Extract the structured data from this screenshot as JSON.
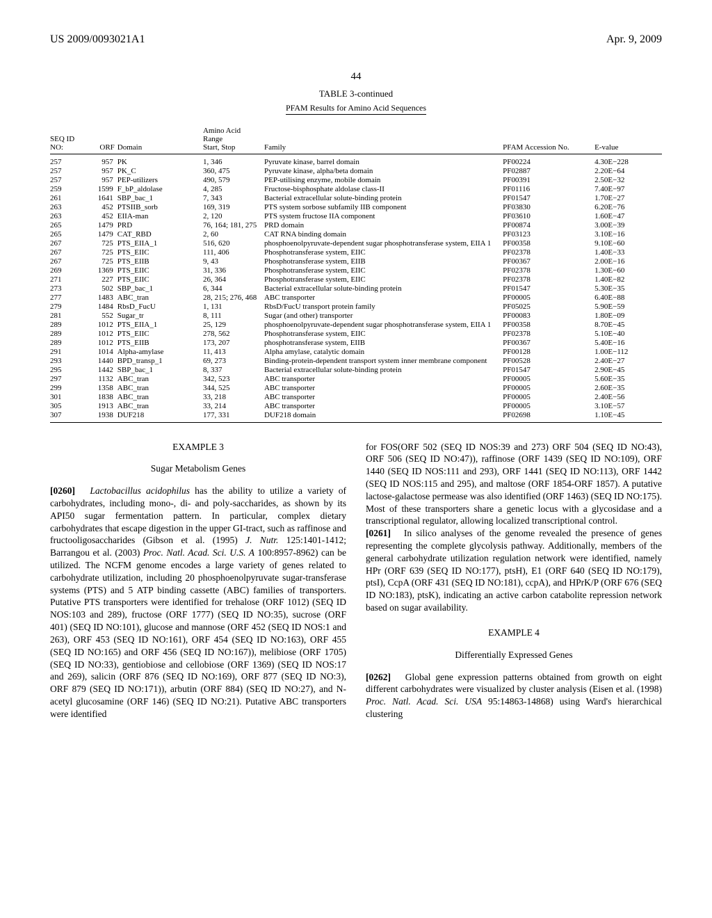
{
  "header": {
    "left": "US 2009/0093021A1",
    "right": "Apr. 9, 2009",
    "page": "44"
  },
  "table": {
    "type": "table",
    "title": "TABLE 3-continued",
    "subtitle": "PFAM Results for Amino Acid Sequences",
    "columns": [
      {
        "label_line1": "SEQ ID",
        "label_line2": "NO:"
      },
      {
        "label_line1": "",
        "label_line2": "ORF"
      },
      {
        "label_line1": "",
        "label_line2": "Domain"
      },
      {
        "label_line1": "Amino Acid",
        "label_line2a": "Range",
        "label_line2": "Start, Stop"
      },
      {
        "label_line1": "",
        "label_line2": "Family"
      },
      {
        "label_line1": "",
        "label_line2": "PFAM Accession No."
      },
      {
        "label_line1": "",
        "label_line2": "E-value"
      }
    ],
    "rows": [
      [
        "257",
        "957",
        "PK",
        "1, 346",
        "Pyruvate kinase, barrel domain",
        "PF00224",
        "4.30E−228"
      ],
      [
        "257",
        "957",
        "PK_C",
        "360, 475",
        "Pyruvate kinase, alpha/beta domain",
        "PF02887",
        "2.20E−64"
      ],
      [
        "257",
        "957",
        "PEP-utilizers",
        "490, 579",
        "PEP-utilising enzyme, mobile domain",
        "PF00391",
        "2.50E−32"
      ],
      [
        "259",
        "1599",
        "F_bP_aldolase",
        "4, 285",
        "Fructose-bisphosphate aldolase class-II",
        "PF01116",
        "7.40E−97"
      ],
      [
        "261",
        "1641",
        "SBP_bac_1",
        "7, 343",
        "Bacterial extracellular solute-binding protein",
        "PF01547",
        "1.70E−27"
      ],
      [
        "263",
        "452",
        "PTSIIB_sorb",
        "169, 319",
        "PTS system sorbose subfamily IIB component",
        "PF03830",
        "6.20E−76"
      ],
      [
        "263",
        "452",
        "EIIA-man",
        "2, 120",
        "PTS system fructose IIA component",
        "PF03610",
        "1.60E−47"
      ],
      [
        "265",
        "1479",
        "PRD",
        "76, 164; 181, 275",
        "PRD domain",
        "PF00874",
        "3.00E−39"
      ],
      [
        "265",
        "1479",
        "CAT_RBD",
        "2, 60",
        "CAT RNA binding domain",
        "PF03123",
        "3.10E−16"
      ],
      [
        "267",
        "725",
        "PTS_EIIA_1",
        "516, 620",
        "phosphoenolpyruvate-dependent sugar phosphotransferase system, EIIA 1",
        "PF00358",
        "9.10E−60"
      ],
      [
        "267",
        "725",
        "PTS_EIIC",
        "111, 406",
        "Phosphotransferase system, EIIC",
        "PF02378",
        "1.40E−33"
      ],
      [
        "267",
        "725",
        "PTS_EIIB",
        "9, 43",
        "Phosphotransferase system, EIIB",
        "PF00367",
        "2.00E−16"
      ],
      [
        "269",
        "1369",
        "PTS_EIIC",
        "31, 336",
        "Phosphotransferase system, EIIC",
        "PF02378",
        "1.30E−60"
      ],
      [
        "271",
        "227",
        "PTS_EIIC",
        "26, 364",
        "Phosphotransferase system, EIIC",
        "PF02378",
        "1.40E−82"
      ],
      [
        "273",
        "502",
        "SBP_bac_1",
        "6, 344",
        "Bacterial extracellular solute-binding protein",
        "PF01547",
        "5.30E−35"
      ],
      [
        "277",
        "1483",
        "ABC_tran",
        "28, 215; 276, 468",
        "ABC transporter",
        "PF00005",
        "6.40E−88"
      ],
      [
        "279",
        "1484",
        "RbsD_FucU",
        "1, 131",
        "RbsD/FucU transport protein family",
        "PF05025",
        "5.90E−59"
      ],
      [
        "281",
        "552",
        "Sugar_tr",
        "8, 111",
        "Sugar (and other) transporter",
        "PF00083",
        "1.80E−09"
      ],
      [
        "289",
        "1012",
        "PTS_EIIA_1",
        "25, 129",
        "phosphoenolpyruvate-dependent sugar phosphotransferase system, EIIA 1",
        "PF00358",
        "8.70E−45"
      ],
      [
        "289",
        "1012",
        "PTS_EIIC",
        "278, 562",
        "Phosphotransferase system, EIIC",
        "PF02378",
        "5.10E−40"
      ],
      [
        "289",
        "1012",
        "PTS_EIIB",
        "173, 207",
        "phosphotransferase system, EIIB",
        "PF00367",
        "5.40E−16"
      ],
      [
        "291",
        "1014",
        "Alpha-amylase",
        "11, 413",
        "Alpha amylase, catalytic domain",
        "PF00128",
        "1.00E−112"
      ],
      [
        "293",
        "1440",
        "BPD_transp_1",
        "69, 273",
        "Binding-protein-dependent transport system inner membrane component",
        "PF00528",
        "2.40E−27"
      ],
      [
        "295",
        "1442",
        "SBP_bac_1",
        "8, 337",
        "Bacterial extracellular solute-binding protein",
        "PF01547",
        "2.90E−45"
      ],
      [
        "297",
        "1132",
        "ABC_tran",
        "342, 523",
        "ABC transporter",
        "PF00005",
        "5.60E−35"
      ],
      [
        "299",
        "1358",
        "ABC_tran",
        "344, 525",
        "ABC transporter",
        "PF00005",
        "2.60E−35"
      ],
      [
        "301",
        "1838",
        "ABC_tran",
        "33, 218",
        "ABC transporter",
        "PF00005",
        "2.40E−56"
      ],
      [
        "305",
        "1913",
        "ABC_tran",
        "33, 214",
        "ABC transporter",
        "PF00005",
        "3.10E−57"
      ],
      [
        "307",
        "1938",
        "DUF218",
        "177, 331",
        "DUF218 domain",
        "PF02698",
        "1.10E−45"
      ]
    ]
  },
  "body": {
    "example3_title": "EXAMPLE 3",
    "example3_sub": "Sugar Metabolism Genes",
    "para0260_num": "[0260]",
    "para0260_a": "Lactobacillus acidophilus",
    "para0260_b": " has the ability to utilize a variety of carbohydrates, including mono-, di- and poly-saccharides, as shown by its API50 sugar fermentation pattern. In particular, complex dietary carbohydrates that escape digestion in the upper GI-tract, such as raffinose and fructooligosaccharides (Gibson et al. (1995) ",
    "para0260_c": "J. Nutr.",
    "para0260_d": " 125:1401-1412; Barrangou et al. (2003) ",
    "para0260_e": "Proc. Natl. Acad. Sci. U.S. A",
    "para0260_f": " 100:8957-8962) can be utilized. The NCFM genome encodes a large variety of genes related to carbohydrate utilization, including 20 phosphoenolpyruvate sugar-transferase systems (PTS) and 5 ATP binding cassette (ABC) families of transporters. Putative PTS transporters were identified for trehalose (ORF 1012) (SEQ ID NOS:103 and 289), fructose (ORF 1777) (SEQ ID NO:35), sucrose (ORF 401) (SEQ ID NO:101), glucose and mannose (ORF 452 (SEQ ID NOS:1 and 263), ORF 453 (SEQ ID NO:161), ORF 454 (SEQ ID NO:163), ORF 455 (SEQ ID NO:165) and ORF 456 (SEQ ID NO:167)), melibiose (ORF 1705) (SEQ ID NO:33), gentiobiose and cellobiose (ORF 1369) (SEQ ID NOS:17 and 269), salicin (ORF 876 (SEQ ID NO:169), ORF 877 (SEQ ID NO:3), ORF 879 (SEQ ID NO:171)), arbutin (ORF 884) (SEQ ID NO:27), and N-acetyl glucosamine (ORF 146) (SEQ ID NO:21). Putative ABC transporters were identified",
    "para_right1": "for FOS(ORF 502 (SEQ ID NOS:39 and 273) ORF 504 (SEQ ID NO:43), ORF 506 (SEQ ID NO:47)), raffinose (ORF 1439 (SEQ ID NO:109), ORF 1440 (SEQ ID NOS:111 and 293), ORF 1441 (SEQ ID NO:113), ORF 1442 (SEQ ID NOS:115 and 295), and maltose (ORF 1854-ORF 1857). A putative lactose-galactose permease was also identified (ORF 1463) (SEQ ID NO:175). Most of these transporters share a genetic locus with a glycosidase and a transcriptional regulator, allowing localized transcriptional control.",
    "para0261_num": "[0261]",
    "para0261": " In silico analyses of the genome revealed the presence of genes representing the complete glycolysis pathway. Additionally, members of the general carbohydrate utilization regulation network were identified, namely HPr (ORF 639 (SEQ ID NO:177), ptsH), E1 (ORF 640 (SEQ ID NO:179), ptsI), CcpA (ORF 431 (SEQ ID NO:181), ccpA), and HPrK/P (ORF 676 (SEQ ID NO:183), ptsK), indicating an active carbon catabolite repression network based on sugar availability.",
    "example4_title": "EXAMPLE 4",
    "example4_sub": "Differentially Expressed Genes",
    "para0262_num": "[0262]",
    "para0262_a": " Global gene expression patterns obtained from growth on eight different carbohydrates were visualized by cluster analysis (Eisen et al. (1998) ",
    "para0262_b": "Proc. Natl. Acad. Sci. USA",
    "para0262_c": " 95:14863-14868) using Ward's hierarchical clustering"
  }
}
